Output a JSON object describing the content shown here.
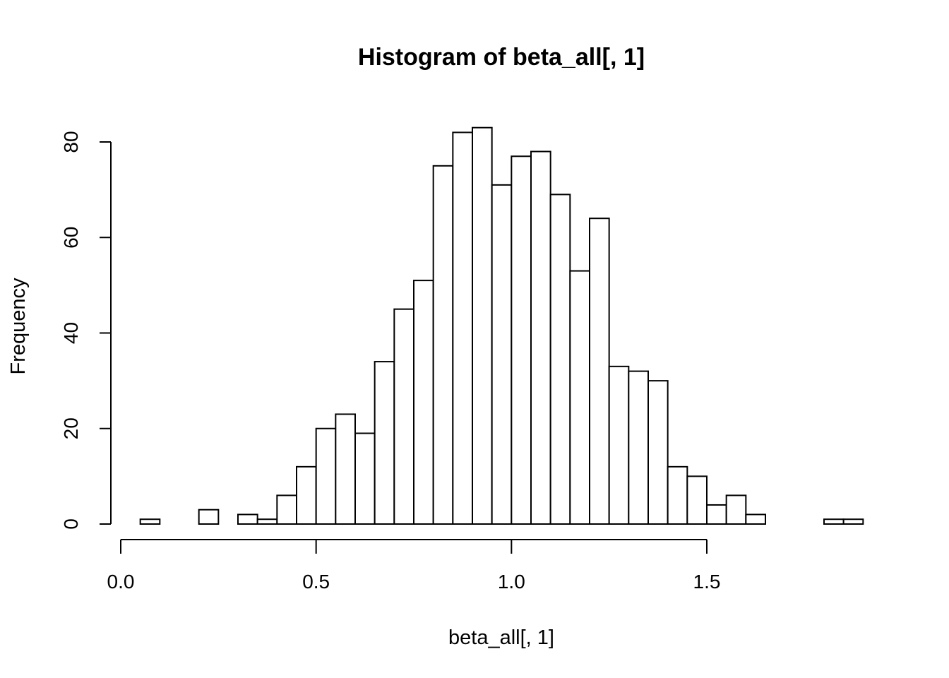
{
  "chart_data": {
    "type": "bar",
    "title": "Histogram of beta_all[, 1]",
    "xlabel": "beta_all[, 1]",
    "ylabel": "Frequency",
    "bin_width": 0.05,
    "bin_start": 0.05,
    "bins": [
      {
        "x0": 0.05,
        "x1": 0.1,
        "count": 1
      },
      {
        "x0": 0.1,
        "x1": 0.15,
        "count": 0
      },
      {
        "x0": 0.15,
        "x1": 0.2,
        "count": 0
      },
      {
        "x0": 0.2,
        "x1": 0.25,
        "count": 3
      },
      {
        "x0": 0.25,
        "x1": 0.3,
        "count": 0
      },
      {
        "x0": 0.3,
        "x1": 0.35,
        "count": 2
      },
      {
        "x0": 0.35,
        "x1": 0.4,
        "count": 1
      },
      {
        "x0": 0.4,
        "x1": 0.45,
        "count": 6
      },
      {
        "x0": 0.45,
        "x1": 0.5,
        "count": 12
      },
      {
        "x0": 0.5,
        "x1": 0.55,
        "count": 20
      },
      {
        "x0": 0.55,
        "x1": 0.6,
        "count": 23
      },
      {
        "x0": 0.6,
        "x1": 0.65,
        "count": 19
      },
      {
        "x0": 0.65,
        "x1": 0.7,
        "count": 34
      },
      {
        "x0": 0.7,
        "x1": 0.75,
        "count": 45
      },
      {
        "x0": 0.75,
        "x1": 0.8,
        "count": 51
      },
      {
        "x0": 0.8,
        "x1": 0.85,
        "count": 75
      },
      {
        "x0": 0.85,
        "x1": 0.9,
        "count": 82
      },
      {
        "x0": 0.9,
        "x1": 0.95,
        "count": 83
      },
      {
        "x0": 0.95,
        "x1": 1.0,
        "count": 71
      },
      {
        "x0": 1.0,
        "x1": 1.05,
        "count": 77
      },
      {
        "x0": 1.05,
        "x1": 1.1,
        "count": 78
      },
      {
        "x0": 1.1,
        "x1": 1.15,
        "count": 69
      },
      {
        "x0": 1.15,
        "x1": 1.2,
        "count": 53
      },
      {
        "x0": 1.2,
        "x1": 1.25,
        "count": 64
      },
      {
        "x0": 1.25,
        "x1": 1.3,
        "count": 33
      },
      {
        "x0": 1.3,
        "x1": 1.35,
        "count": 32
      },
      {
        "x0": 1.35,
        "x1": 1.4,
        "count": 30
      },
      {
        "x0": 1.4,
        "x1": 1.45,
        "count": 12
      },
      {
        "x0": 1.45,
        "x1": 1.5,
        "count": 10
      },
      {
        "x0": 1.5,
        "x1": 1.55,
        "count": 4
      },
      {
        "x0": 1.55,
        "x1": 1.6,
        "count": 6
      },
      {
        "x0": 1.6,
        "x1": 1.65,
        "count": 2
      },
      {
        "x0": 1.65,
        "x1": 1.7,
        "count": 0
      },
      {
        "x0": 1.7,
        "x1": 1.75,
        "count": 0
      },
      {
        "x0": 1.75,
        "x1": 1.8,
        "count": 0
      },
      {
        "x0": 1.8,
        "x1": 1.85,
        "count": 1
      },
      {
        "x0": 1.85,
        "x1": 1.9,
        "count": 1
      }
    ],
    "x_ticks": [
      0.0,
      0.5,
      1.0,
      1.5
    ],
    "x_tick_labels": [
      "0.0",
      "0.5",
      "1.0",
      "1.5"
    ],
    "y_ticks": [
      0,
      20,
      40,
      60,
      80
    ],
    "y_tick_labels": [
      "0",
      "20",
      "40",
      "60",
      "80"
    ],
    "xlim": [
      0.0,
      1.9
    ],
    "ylim": [
      0,
      83
    ],
    "grid": false,
    "legend": "none",
    "colors": {
      "bar_fill": "#ffffff",
      "bar_stroke": "#000000"
    }
  }
}
